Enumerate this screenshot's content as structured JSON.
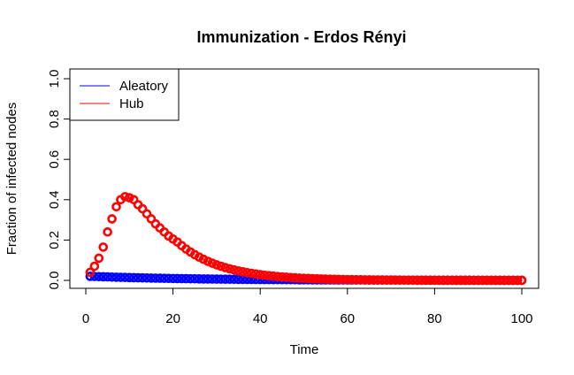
{
  "chart_data": {
    "type": "scatter",
    "title": "Immunization - Erdos Rényi",
    "xlabel": "Time",
    "ylabel": "Fraction of infected nodes",
    "xlim": [
      0,
      100
    ],
    "ylim": [
      0,
      1
    ],
    "x_ticks": [
      "0",
      "20",
      "40",
      "60",
      "80",
      "100"
    ],
    "y_ticks": [
      "0.0",
      "0.2",
      "0.4",
      "0.6",
      "0.8",
      "1.0"
    ],
    "legend": {
      "placement": "top-left",
      "entries": [
        {
          "label": "Aleatory",
          "color": "#0000ff"
        },
        {
          "label": "Hub",
          "color": "#ff0000"
        }
      ]
    },
    "series": [
      {
        "name": "Aleatory",
        "color": "#0000ff",
        "model": {
          "kind": "aleatory",
          "x_start": 1,
          "x_end": 100,
          "peak": 0.02,
          "decay_tau": 25
        }
      },
      {
        "name": "Hub",
        "color": "#ff0000",
        "points": [
          [
            1,
            0.04
          ],
          [
            2,
            0.07
          ],
          [
            3,
            0.11
          ],
          [
            4,
            0.165
          ],
          [
            5,
            0.24
          ],
          [
            6,
            0.305
          ],
          [
            7,
            0.365
          ],
          [
            8,
            0.4
          ],
          [
            9,
            0.415
          ],
          [
            10,
            0.41
          ],
          [
            11,
            0.4
          ],
          [
            12,
            0.375
          ],
          [
            13,
            0.355
          ],
          [
            14,
            0.33
          ],
          [
            15,
            0.305
          ],
          [
            16,
            0.28
          ],
          [
            17,
            0.26
          ],
          [
            18,
            0.24
          ],
          [
            19,
            0.22
          ],
          [
            20,
            0.205
          ]
        ],
        "tail_model": {
          "x_start": 21,
          "x_end": 100,
          "start_value": 0.19,
          "decay_tau": 10
        }
      }
    ]
  }
}
